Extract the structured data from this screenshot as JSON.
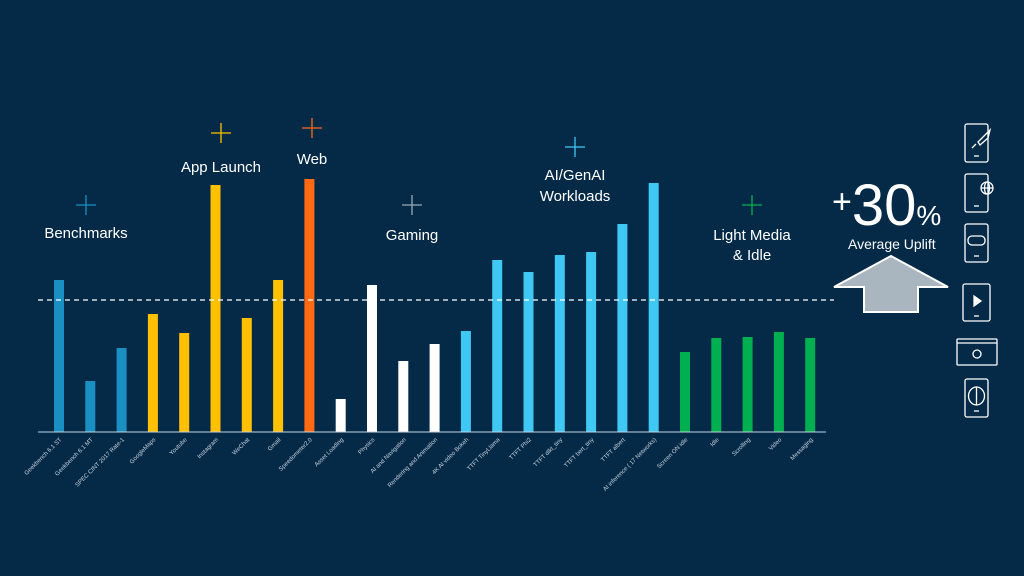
{
  "chart_data": {
    "type": "bar",
    "title": "",
    "xlabel": "",
    "ylabel": "",
    "ylim": [
      0,
      260
    ],
    "grid": false,
    "average_line": 132,
    "categories": [
      "Geekbench 6.1 ST",
      "Geekbench 6.1 MT",
      "SPEC CINT 2017 Rate-1",
      "GoogleMaps",
      "Youtube",
      "Instagram",
      "WeChat",
      "Gmail",
      "Speedometer2.0",
      "Asset Loading",
      "Physics",
      "AI and Navigation",
      "Rendering and Animation",
      "4K AI video Bokeh",
      "TTFT TinyLlama",
      "TTFT Phi2",
      "TTFT dlkt_tiny",
      "TTFT bert_tiny",
      "TTFT albert",
      "AI inference ( 17 Networks)",
      "Screen ON idle",
      "Idle",
      "Scrolling",
      "Video",
      "Messaging"
    ],
    "values": [
      152,
      51,
      84,
      118,
      99,
      247,
      114,
      152,
      253,
      33,
      147,
      71,
      88,
      101,
      172,
      160,
      177,
      180,
      208,
      249,
      80,
      94,
      95,
      100,
      94
    ],
    "groups": [
      {
        "label": "Benchmarks",
        "color": "#1a8fc1",
        "members": [
          0,
          1,
          2
        ]
      },
      {
        "label": "App Launch",
        "color": "#ffc000",
        "members": [
          3,
          4,
          5,
          6,
          7
        ]
      },
      {
        "label": "Web",
        "color": "#ff6a13",
        "members": [
          8
        ]
      },
      {
        "label": "Gaming",
        "color": "#ffffff",
        "members": [
          9,
          10,
          11,
          12
        ]
      },
      {
        "label": "AI/GenAI Workloads",
        "color": "#3fc8f4",
        "members": [
          13,
          14,
          15,
          16,
          17,
          18,
          19
        ]
      },
      {
        "label": "Light Media & Idle",
        "color": "#00b050",
        "members": [
          20,
          21,
          22,
          23,
          24
        ]
      }
    ]
  },
  "summary": {
    "plus": "+",
    "value": "30",
    "percent": "%",
    "label": "Average Uplift"
  },
  "icons": [
    "phone-rocket-icon",
    "phone-globe-icon",
    "phone-gamepad-icon",
    "tablet-play-icon",
    "browser-gear-icon",
    "phone-brain-icon"
  ],
  "colors": {
    "background": "#052a48",
    "arrow": "#a9b6c0"
  }
}
